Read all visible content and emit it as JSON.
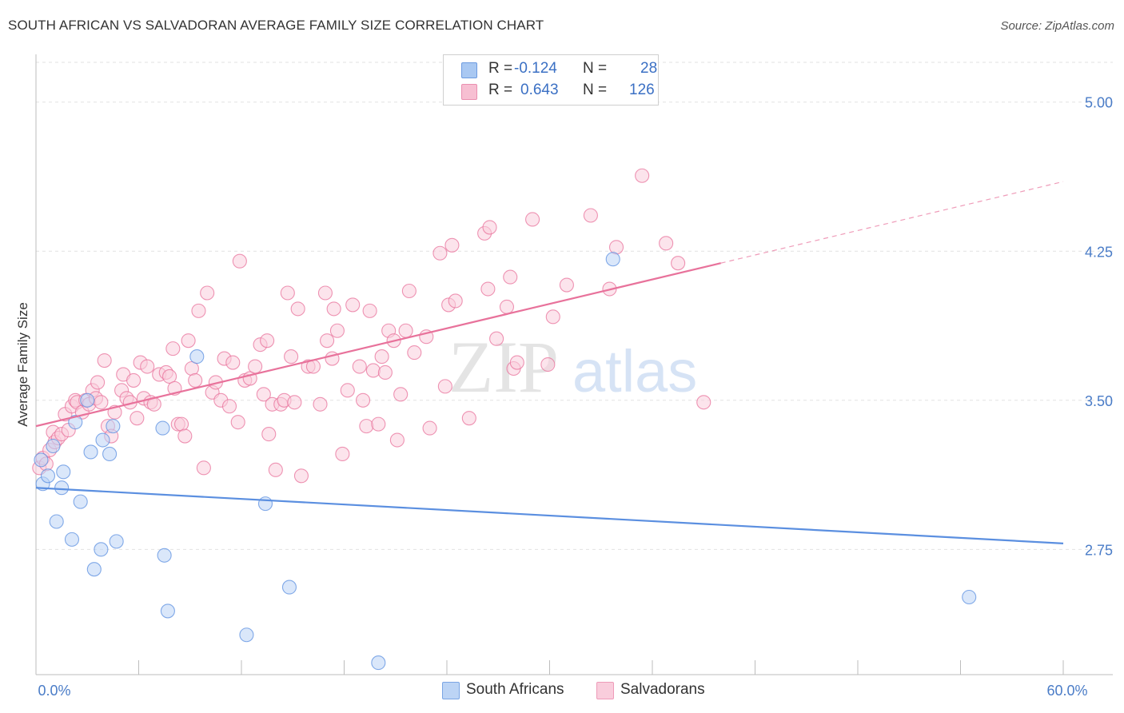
{
  "title": "SOUTH AFRICAN VS SALVADORAN AVERAGE FAMILY SIZE CORRELATION CHART",
  "source": "Source: ZipAtlas.com",
  "watermark": {
    "zip": "ZIP",
    "atlas": "atlas"
  },
  "legend": {
    "rows": [
      {
        "r_label": "R =",
        "r_value": "-0.124",
        "n_label": "N =",
        "n_value": "28",
        "color": "#a9c8f2",
        "border": "#6d9be0"
      },
      {
        "r_label": "R =",
        "r_value": "0.643",
        "n_label": "N =",
        "n_value": "126",
        "color": "#f7bfd2",
        "border": "#ea8fb0"
      }
    ]
  },
  "bottom_legend": [
    {
      "label": "South Africans",
      "color": "#bcd4f5",
      "border": "#7aa5e4"
    },
    {
      "label": "Salvadorans",
      "color": "#f9cddc",
      "border": "#ee9bb9"
    }
  ],
  "chart_data": {
    "type": "scatter",
    "title": "SOUTH AFRICAN VS SALVADORAN AVERAGE FAMILY SIZE CORRELATION CHART",
    "xlabel": "",
    "ylabel": "Average Family Size",
    "xlim": [
      0,
      60
    ],
    "ylim": [
      2.12,
      5.2
    ],
    "x_tick_labels": [
      {
        "value": 0,
        "label": "0.0%"
      },
      {
        "value": 60,
        "label": "60.0%"
      }
    ],
    "y_ticks": [
      {
        "value": 2.75,
        "label": "2.75"
      },
      {
        "value": 3.5,
        "label": "3.50"
      },
      {
        "value": 4.25,
        "label": "4.25"
      },
      {
        "value": 5.0,
        "label": "5.00"
      }
    ],
    "grid": true,
    "series": [
      {
        "name": "South Africans",
        "color": "#5b8fe0",
        "fill": "#bcd4f5",
        "points": [
          [
            0.3,
            3.2
          ],
          [
            0.4,
            3.08
          ],
          [
            0.7,
            3.12
          ],
          [
            1.0,
            3.27
          ],
          [
            1.2,
            2.89
          ],
          [
            1.5,
            3.06
          ],
          [
            2.1,
            2.8
          ],
          [
            2.3,
            3.39
          ],
          [
            2.6,
            2.99
          ],
          [
            3.0,
            3.5
          ],
          [
            3.2,
            3.24
          ],
          [
            3.4,
            2.65
          ],
          [
            3.8,
            2.75
          ],
          [
            3.9,
            3.3
          ],
          [
            4.3,
            3.23
          ],
          [
            4.5,
            3.37
          ],
          [
            4.7,
            2.79
          ],
          [
            7.4,
            3.36
          ],
          [
            7.5,
            2.72
          ],
          [
            7.7,
            2.44
          ],
          [
            9.4,
            3.72
          ],
          [
            12.3,
            2.32
          ],
          [
            13.4,
            2.98
          ],
          [
            14.8,
            2.56
          ],
          [
            20.0,
            2.18
          ],
          [
            33.7,
            4.21
          ],
          [
            54.5,
            2.51
          ],
          [
            1.6,
            3.14
          ]
        ],
        "trend": {
          "x0": 0,
          "y0": 3.06,
          "x1": 60,
          "y1": 2.78
        }
      },
      {
        "name": "Salvadorans",
        "color": "#e8729b",
        "fill": "#f9cddc",
        "points": [
          [
            0.2,
            3.16
          ],
          [
            0.4,
            3.21
          ],
          [
            0.6,
            3.18
          ],
          [
            0.8,
            3.25
          ],
          [
            1.0,
            3.34
          ],
          [
            1.1,
            3.29
          ],
          [
            1.3,
            3.31
          ],
          [
            1.5,
            3.33
          ],
          [
            1.7,
            3.43
          ],
          [
            1.9,
            3.35
          ],
          [
            2.1,
            3.47
          ],
          [
            2.3,
            3.5
          ],
          [
            2.4,
            3.49
          ],
          [
            2.7,
            3.44
          ],
          [
            2.9,
            3.5
          ],
          [
            3.1,
            3.48
          ],
          [
            3.3,
            3.55
          ],
          [
            3.5,
            3.51
          ],
          [
            3.6,
            3.59
          ],
          [
            3.8,
            3.49
          ],
          [
            4.0,
            3.7
          ],
          [
            4.2,
            3.37
          ],
          [
            4.4,
            3.32
          ],
          [
            4.6,
            3.44
          ],
          [
            5.0,
            3.55
          ],
          [
            5.1,
            3.63
          ],
          [
            5.3,
            3.51
          ],
          [
            5.5,
            3.49
          ],
          [
            5.7,
            3.6
          ],
          [
            5.9,
            3.41
          ],
          [
            6.1,
            3.69
          ],
          [
            6.3,
            3.51
          ],
          [
            6.5,
            3.67
          ],
          [
            6.7,
            3.49
          ],
          [
            6.9,
            3.48
          ],
          [
            7.2,
            3.63
          ],
          [
            7.6,
            3.64
          ],
          [
            7.8,
            3.62
          ],
          [
            8.0,
            3.76
          ],
          [
            8.1,
            3.56
          ],
          [
            8.3,
            3.38
          ],
          [
            8.5,
            3.38
          ],
          [
            8.7,
            3.32
          ],
          [
            8.9,
            3.8
          ],
          [
            9.1,
            3.66
          ],
          [
            9.3,
            3.6
          ],
          [
            9.5,
            3.95
          ],
          [
            9.8,
            3.16
          ],
          [
            10.0,
            4.04
          ],
          [
            10.3,
            3.54
          ],
          [
            10.5,
            3.59
          ],
          [
            10.8,
            3.5
          ],
          [
            11.0,
            3.71
          ],
          [
            11.3,
            3.47
          ],
          [
            11.5,
            3.69
          ],
          [
            11.8,
            3.39
          ],
          [
            11.9,
            4.2
          ],
          [
            12.2,
            3.6
          ],
          [
            12.5,
            3.61
          ],
          [
            12.8,
            3.67
          ],
          [
            13.1,
            3.78
          ],
          [
            13.3,
            3.53
          ],
          [
            13.5,
            3.8
          ],
          [
            13.6,
            3.33
          ],
          [
            13.8,
            3.48
          ],
          [
            14.0,
            3.15
          ],
          [
            14.3,
            3.48
          ],
          [
            14.5,
            3.5
          ],
          [
            14.7,
            4.04
          ],
          [
            14.9,
            3.72
          ],
          [
            15.1,
            3.49
          ],
          [
            15.3,
            3.96
          ],
          [
            15.5,
            3.12
          ],
          [
            15.9,
            3.67
          ],
          [
            16.2,
            3.67
          ],
          [
            16.6,
            3.48
          ],
          [
            16.9,
            4.04
          ],
          [
            17.0,
            3.8
          ],
          [
            17.3,
            3.71
          ],
          [
            17.4,
            3.96
          ],
          [
            17.6,
            3.85
          ],
          [
            17.9,
            3.23
          ],
          [
            18.2,
            3.55
          ],
          [
            18.5,
            3.98
          ],
          [
            18.9,
            3.67
          ],
          [
            19.1,
            3.5
          ],
          [
            19.3,
            3.37
          ],
          [
            19.5,
            3.95
          ],
          [
            19.7,
            3.65
          ],
          [
            20.0,
            3.38
          ],
          [
            20.2,
            3.72
          ],
          [
            20.4,
            3.64
          ],
          [
            20.6,
            3.85
          ],
          [
            20.9,
            3.8
          ],
          [
            21.1,
            3.3
          ],
          [
            21.3,
            3.53
          ],
          [
            21.6,
            3.85
          ],
          [
            21.8,
            4.05
          ],
          [
            22.1,
            3.74
          ],
          [
            22.8,
            3.82
          ],
          [
            23.0,
            3.36
          ],
          [
            23.6,
            4.24
          ],
          [
            23.9,
            3.57
          ],
          [
            24.1,
            3.98
          ],
          [
            24.3,
            4.28
          ],
          [
            24.5,
            4.0
          ],
          [
            25.3,
            3.41
          ],
          [
            26.2,
            4.34
          ],
          [
            26.4,
            4.06
          ],
          [
            26.5,
            4.37
          ],
          [
            26.9,
            3.81
          ],
          [
            27.5,
            3.97
          ],
          [
            27.7,
            4.12
          ],
          [
            27.9,
            3.66
          ],
          [
            28.1,
            3.69
          ],
          [
            29.0,
            4.41
          ],
          [
            29.9,
            3.68
          ],
          [
            30.2,
            3.92
          ],
          [
            31.0,
            4.08
          ],
          [
            32.4,
            4.43
          ],
          [
            33.5,
            4.06
          ],
          [
            33.9,
            4.27
          ],
          [
            35.4,
            4.63
          ],
          [
            36.8,
            4.29
          ],
          [
            37.5,
            4.19
          ],
          [
            39.0,
            3.49
          ]
        ],
        "trend": {
          "x0": 0,
          "y0": 3.37,
          "x1": 40,
          "y1": 4.19
        },
        "trend_extension": {
          "x0": 40,
          "y0": 4.19,
          "x1": 60,
          "y1": 4.6
        }
      }
    ]
  }
}
